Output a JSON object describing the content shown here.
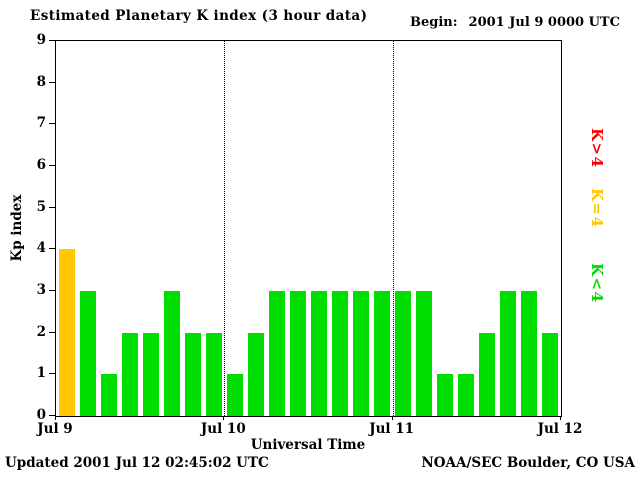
{
  "header": {
    "title": "Estimated Planetary K index (3 hour data)",
    "begin_label": "Begin:",
    "begin_value": "2001 Jul 9 0000 UTC"
  },
  "footer": {
    "updated": "Updated 2001 Jul 12 02:45:02 UTC",
    "org": "NOAA/SEC Boulder, CO USA"
  },
  "legend": [
    {
      "label": "K>4",
      "color": "#ff0000"
    },
    {
      "label": "K=4",
      "color": "#ffc800"
    },
    {
      "label": "K<4",
      "color": "#00dd00"
    }
  ],
  "chart_data": {
    "type": "bar",
    "title": "Estimated Planetary K index (3 hour data)",
    "xlabel": "Universal Time",
    "ylabel": "Kp index",
    "ylim": [
      0,
      9
    ],
    "y_ticks": [
      0,
      1,
      2,
      3,
      4,
      5,
      6,
      7,
      8,
      9
    ],
    "x_ticks": [
      "Jul 9",
      "Jul 10",
      "Jul 11",
      "Jul 12"
    ],
    "gridlines_x": [
      "Jul 10",
      "Jul 11"
    ],
    "interval_hours": 3,
    "begin": "2001 Jul 9 0000 UTC",
    "values": [
      4,
      3,
      1,
      2,
      2,
      3,
      2,
      2,
      1,
      2,
      3,
      3,
      3,
      3,
      3,
      3,
      3,
      3,
      1,
      1,
      2,
      3,
      3,
      2
    ],
    "bar_colors_rule": {
      "lt4": "#00dd00",
      "eq4": "#ffc800",
      "gt4": "#ff0000"
    },
    "legend_position": "right",
    "grid": "dotted vertical at day boundaries"
  }
}
